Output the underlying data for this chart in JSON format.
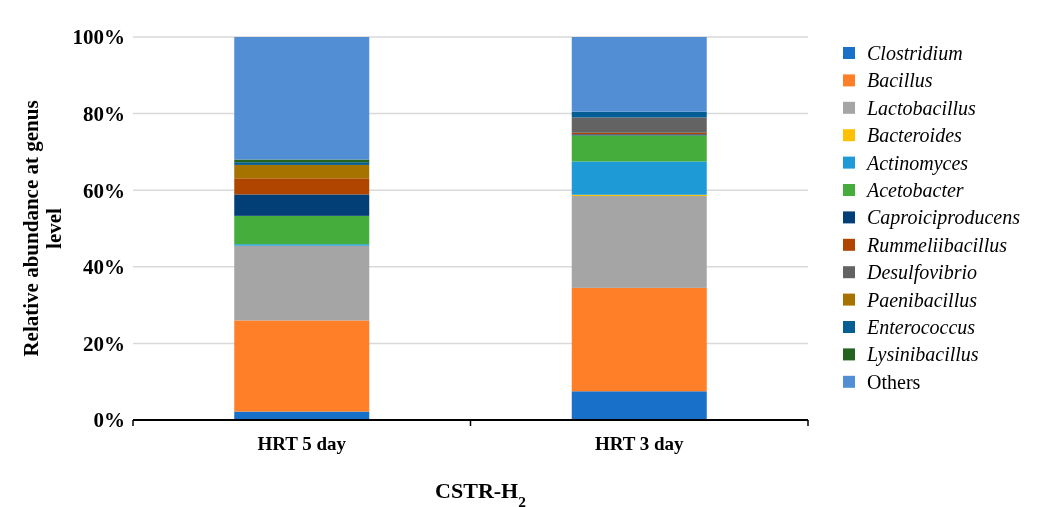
{
  "chart_data": {
    "type": "bar",
    "stacked": true,
    "xlabel": "CSTR-H$_{2}$",
    "ylabel": "Relative abundance at genus level",
    "categories": [
      "HRT 5 day",
      "HRT 3 day"
    ],
    "series": [
      {
        "name": "Clostridium",
        "color": "#1870c8",
        "values": [
          2.2,
          7.5
        ]
      },
      {
        "name": "Bacillus",
        "color": "#fe7f27",
        "values": [
          23.8,
          27.0
        ]
      },
      {
        "name": "Lactobacillus",
        "color": "#a5a5a5",
        "values": [
          19.5,
          24.0
        ]
      },
      {
        "name": "Bacteroides",
        "color": "#ffc000",
        "values": [
          0,
          0.3
        ]
      },
      {
        "name": "Actinomyces",
        "color": "#1e9bd7",
        "values": [
          0.4,
          8.7
        ]
      },
      {
        "name": "Acetobacter",
        "color": "#44ad3c",
        "values": [
          7.4,
          6.8
        ]
      },
      {
        "name": "Caproiciproducens",
        "color": "#033f77",
        "values": [
          5.6,
          0.3
        ]
      },
      {
        "name": "Rummeliibacillus",
        "color": "#b04500",
        "values": [
          4.2,
          0.4
        ]
      },
      {
        "name": "Desulfovibrio",
        "color": "#636363",
        "values": [
          0,
          4.0
        ]
      },
      {
        "name": "Paenibacillus",
        "color": "#a77300",
        "values": [
          3.5,
          0
        ]
      },
      {
        "name": "Enterococcus",
        "color": "#045e94",
        "values": [
          0.7,
          1.5
        ]
      },
      {
        "name": "Lysinibacillus",
        "color": "#24631f",
        "values": [
          0.7,
          0
        ]
      },
      {
        "name": "Others",
        "color": "#528ed3",
        "values": [
          32.0,
          19.5
        ]
      }
    ],
    "ylim": [
      0,
      100
    ],
    "yticks": [
      {
        "value": 0,
        "label": "0%"
      },
      {
        "value": 20,
        "label": "20%"
      },
      {
        "value": 40,
        "label": "40%"
      },
      {
        "value": 60,
        "label": "60%"
      },
      {
        "value": 80,
        "label": "80%"
      },
      {
        "value": 100,
        "label": "100%"
      }
    ],
    "grid": "y",
    "legend": "right"
  }
}
